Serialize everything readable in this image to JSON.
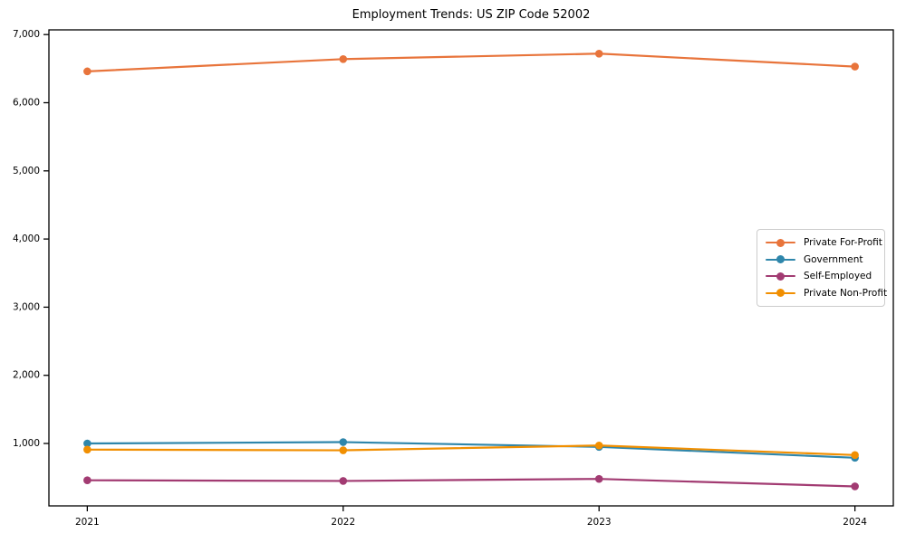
{
  "window": {
    "background": "#ffffff"
  },
  "chart_data": {
    "type": "line",
    "title": "Employment Trends: US ZIP Code 52002",
    "categories": [
      "2021",
      "2022",
      "2023",
      "2024"
    ],
    "x": [
      2021,
      2022,
      2023,
      2024
    ],
    "series": [
      {
        "name": "Private For-Profit",
        "color": "#E8743B",
        "values": [
          6460,
          6640,
          6720,
          6530
        ]
      },
      {
        "name": "Government",
        "color": "#2E86AB",
        "values": [
          1000,
          1020,
          950,
          790
        ]
      },
      {
        "name": "Self-Employed",
        "color": "#A23B72",
        "values": [
          460,
          450,
          480,
          370
        ]
      },
      {
        "name": "Private Non-Profit",
        "color": "#F18F01",
        "values": [
          910,
          900,
          970,
          830
        ]
      }
    ],
    "xlabel": "",
    "ylabel": "",
    "yticks": [
      1000,
      2000,
      3000,
      4000,
      5000,
      6000,
      7000
    ],
    "ytick_labels": [
      "1,000",
      "2,000",
      "3,000",
      "4,000",
      "5,000",
      "6,000",
      "7,000"
    ],
    "xlim": [
      2020.85,
      2024.15
    ],
    "ylim": [
      84,
      7069
    ],
    "grid": false,
    "legend": {
      "position": "center-right",
      "border_color": "#cccccc",
      "background": "#ffffff"
    },
    "axis_color": "#000000"
  }
}
